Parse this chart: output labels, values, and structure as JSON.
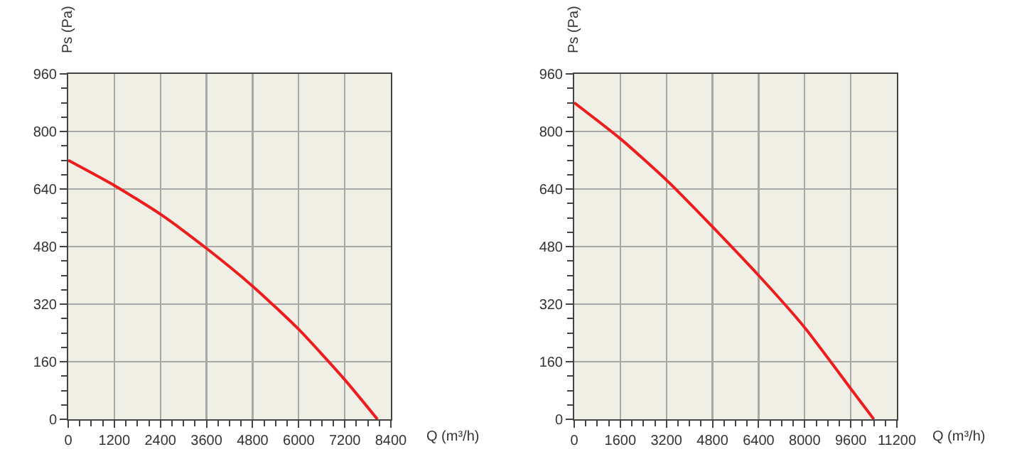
{
  "chart_data": [
    {
      "type": "line",
      "xlabel": "Q (m³/h)",
      "ylabel": "Ps (Pa)",
      "x": [
        0,
        1200,
        2400,
        3600,
        4800,
        6000,
        7200,
        8050
      ],
      "series": [
        {
          "color": "#ee1c1c",
          "values": [
            720,
            650,
            570,
            475,
            370,
            250,
            110,
            0
          ]
        }
      ],
      "xlim": [
        0,
        8400
      ],
      "xticks": [
        0,
        1200,
        2400,
        3600,
        4800,
        6000,
        7200,
        8400
      ],
      "ylim": [
        0,
        960
      ],
      "yticks": [
        0,
        160,
        320,
        480,
        640,
        800,
        960
      ],
      "grid": true,
      "marker": "none",
      "line_style": "solid"
    },
    {
      "type": "line",
      "xlabel": "Q (m³/h)",
      "ylabel": "Ps (Pa)",
      "x": [
        0,
        1600,
        3200,
        4800,
        6400,
        8000,
        9600,
        10400
      ],
      "series": [
        {
          "color": "#ee1c1c",
          "values": [
            880,
            780,
            665,
            535,
            400,
            255,
            85,
            0
          ]
        }
      ],
      "xlim": [
        0,
        11200
      ],
      "xticks": [
        0,
        1600,
        3200,
        4800,
        6400,
        8000,
        9600,
        11200
      ],
      "ylim": [
        0,
        960
      ],
      "yticks": [
        0,
        160,
        320,
        480,
        640,
        800,
        960
      ],
      "grid": true,
      "marker": "none",
      "line_style": "solid"
    }
  ]
}
